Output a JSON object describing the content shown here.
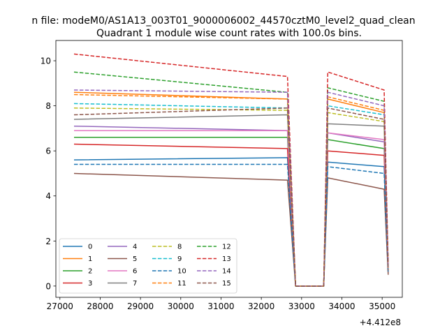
{
  "figure": {
    "suptitle": "n file: modeM0/AS1A13_003T01_9000006002_44570cztM0_level2_quad_clean",
    "title": "Quadrant 1 module wise count rates with 100.0s bins.",
    "offset_label": "+4.412e8"
  },
  "chart_data": {
    "type": "line",
    "title": "Quadrant 1 module wise count rates with 100.0s bins.",
    "xlabel": "",
    "ylabel": "",
    "x_offset": 441200000,
    "xlim": [
      26900,
      35500
    ],
    "ylim": [
      -0.5,
      10.9
    ],
    "xticks": [
      27000,
      28000,
      29000,
      30000,
      31000,
      32000,
      33000,
      34000,
      35000
    ],
    "yticks": [
      0,
      2,
      4,
      6,
      8,
      10
    ],
    "grid": false,
    "legend_position": "lower-left",
    "legend_columns": 4,
    "x": [
      27350,
      32650,
      32850,
      33550,
      33650,
      35050,
      35150
    ],
    "series": [
      {
        "name": "0",
        "color": "#1f77b4",
        "style": "solid",
        "values": [
          5.6,
          5.7,
          0.0,
          0.0,
          5.5,
          5.3,
          0.6
        ]
      },
      {
        "name": "1",
        "color": "#ff7f0e",
        "style": "solid",
        "values": [
          8.6,
          8.3,
          0.0,
          0.0,
          8.3,
          7.7,
          0.8
        ]
      },
      {
        "name": "2",
        "color": "#2ca02c",
        "style": "solid",
        "values": [
          6.6,
          6.6,
          0.0,
          0.0,
          6.5,
          6.1,
          0.7
        ]
      },
      {
        "name": "3",
        "color": "#d62728",
        "style": "solid",
        "values": [
          6.3,
          6.1,
          0.0,
          0.0,
          6.0,
          5.8,
          0.6
        ]
      },
      {
        "name": "4",
        "color": "#9467bd",
        "style": "solid",
        "values": [
          7.1,
          6.9,
          0.0,
          0.0,
          6.8,
          6.4,
          0.7
        ]
      },
      {
        "name": "5",
        "color": "#8c564b",
        "style": "solid",
        "values": [
          5.0,
          4.7,
          0.0,
          0.0,
          4.8,
          4.3,
          0.5
        ]
      },
      {
        "name": "6",
        "color": "#e377c2",
        "style": "solid",
        "values": [
          6.9,
          6.9,
          0.0,
          0.0,
          6.8,
          6.5,
          0.7
        ]
      },
      {
        "name": "7",
        "color": "#7f7f7f",
        "style": "solid",
        "values": [
          7.4,
          7.6,
          0.0,
          0.0,
          7.2,
          7.1,
          0.7
        ]
      },
      {
        "name": "8",
        "color": "#bcbd22",
        "style": "dashed",
        "values": [
          7.9,
          7.8,
          0.0,
          0.0,
          7.7,
          7.3,
          0.7
        ]
      },
      {
        "name": "9",
        "color": "#17becf",
        "style": "dashed",
        "values": [
          8.1,
          7.9,
          0.0,
          0.0,
          8.0,
          7.6,
          0.8
        ]
      },
      {
        "name": "10",
        "color": "#1f77b4",
        "style": "dashed",
        "values": [
          5.4,
          5.4,
          0.0,
          0.0,
          5.3,
          5.0,
          0.6
        ]
      },
      {
        "name": "11",
        "color": "#ff7f0e",
        "style": "dashed",
        "values": [
          8.5,
          8.3,
          0.0,
          0.0,
          8.4,
          7.8,
          0.8
        ]
      },
      {
        "name": "12",
        "color": "#2ca02c",
        "style": "dashed",
        "values": [
          9.5,
          8.6,
          0.0,
          0.0,
          8.8,
          8.2,
          0.9
        ]
      },
      {
        "name": "13",
        "color": "#d62728",
        "style": "dashed",
        "values": [
          10.3,
          9.3,
          0.0,
          0.0,
          9.5,
          8.7,
          1.0
        ]
      },
      {
        "name": "14",
        "color": "#9467bd",
        "style": "dashed",
        "values": [
          8.7,
          8.6,
          0.0,
          0.0,
          8.6,
          8.0,
          0.8
        ]
      },
      {
        "name": "15",
        "color": "#8c564b",
        "style": "dashed",
        "values": [
          7.6,
          7.9,
          0.0,
          0.0,
          7.9,
          7.4,
          0.7
        ]
      }
    ]
  }
}
